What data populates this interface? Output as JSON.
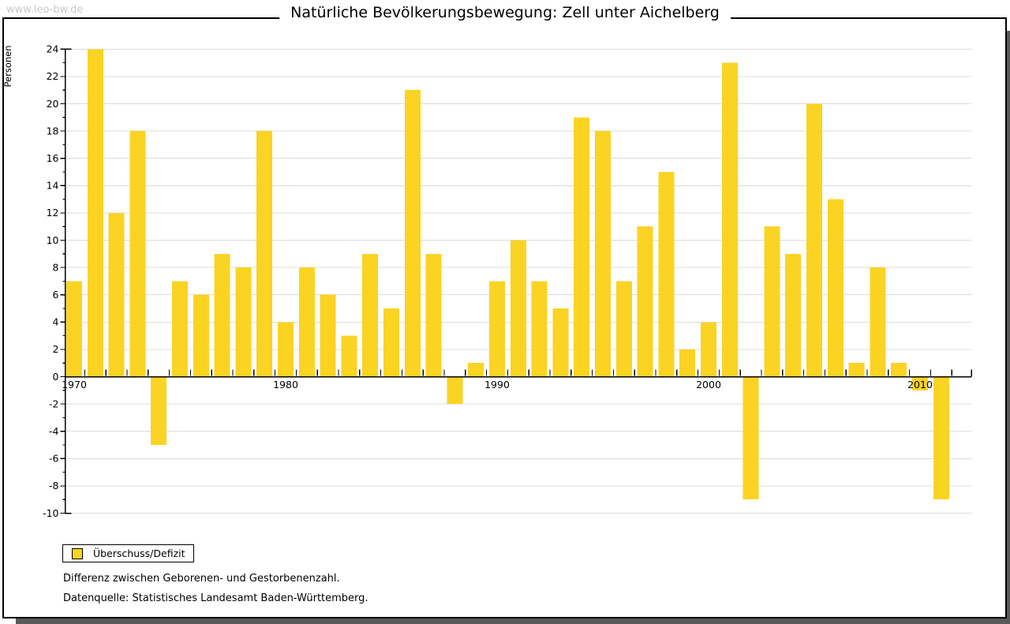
{
  "watermark": "www.leo-bw.de",
  "title": "Natürliche Bevölkerungsbewegung: Zell unter Aichelberg",
  "legend": {
    "label": "Überschuss/Defizit",
    "swatch_color": "#fbd323"
  },
  "footnotes": {
    "line1": "Differenz zwischen Geborenen- und Gestorbenenzahl.",
    "line2": "Datenquelle: Statistisches Landesamt Baden-Württemberg."
  },
  "colors": {
    "bar": "#fbd323",
    "grid": "#dcdcdc",
    "axis": "#000000",
    "watermark": "#c9c9c9",
    "frame_border": "#000000",
    "frame_shadow": "#595959"
  },
  "chart_data": {
    "type": "bar",
    "title": "Natürliche Bevölkerungsbewegung: Zell unter Aichelberg",
    "xlabel": "",
    "ylabel": "Personen",
    "series_name": "Überschuss/Defizit",
    "x": [
      1970,
      1971,
      1972,
      1973,
      1974,
      1975,
      1976,
      1977,
      1978,
      1979,
      1980,
      1981,
      1982,
      1983,
      1984,
      1985,
      1986,
      1987,
      1988,
      1989,
      1990,
      1991,
      1992,
      1993,
      1994,
      1995,
      1996,
      1997,
      1998,
      1999,
      2000,
      2001,
      2002,
      2003,
      2004,
      2005,
      2006,
      2007,
      2008,
      2009,
      2010,
      2011
    ],
    "values": [
      7,
      24,
      12,
      18,
      -5,
      7,
      6,
      9,
      8,
      18,
      4,
      8,
      6,
      3,
      9,
      5,
      21,
      9,
      -2,
      1,
      7,
      10,
      7,
      5,
      19,
      18,
      7,
      11,
      15,
      2,
      4,
      23,
      -9,
      11,
      9,
      20,
      13,
      1,
      8,
      1,
      -1,
      -9
    ],
    "ylim": [
      -10,
      24
    ],
    "ytick_step": 2,
    "ytick_labels": [
      -10,
      -8,
      -6,
      -4,
      -2,
      0,
      2,
      4,
      6,
      8,
      10,
      12,
      14,
      16,
      18,
      20,
      22,
      24
    ],
    "xtick_labels": [
      1970,
      1980,
      1990,
      2000,
      2010
    ],
    "grid": true,
    "legend_position": "bottom-left",
    "bar_color": "#fbd323"
  }
}
